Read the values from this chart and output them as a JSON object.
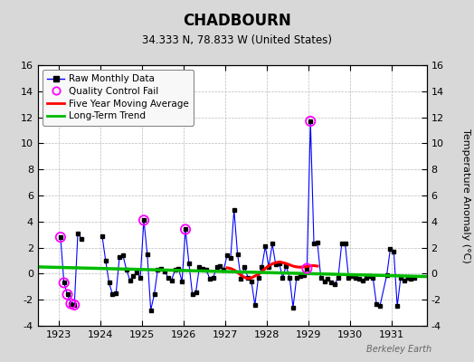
{
  "title": "CHADBOURN",
  "subtitle": "34.333 N, 78.833 W (United States)",
  "ylabel": "Temperature Anomaly (°C)",
  "watermark": "Berkeley Earth",
  "xlim": [
    1922.5,
    1931.83
  ],
  "ylim": [
    -4,
    16
  ],
  "yticks": [
    -4,
    -2,
    0,
    2,
    4,
    6,
    8,
    10,
    12,
    14,
    16
  ],
  "xticks": [
    1923,
    1924,
    1925,
    1926,
    1927,
    1928,
    1929,
    1930,
    1931
  ],
  "bg_color": "#d8d8d8",
  "plot_bg_color": "#ffffff",
  "grid_color": "#bbbbbb",
  "raw_line_color": "#0000ff",
  "raw_marker_color": "#000000",
  "qc_fail_color": "#ff00ff",
  "moving_avg_color": "#ff0000",
  "trend_color": "#00bb00",
  "raw_data": [
    [
      1923.042,
      2.8
    ],
    [
      1923.125,
      -0.7
    ],
    [
      1923.208,
      -1.6
    ],
    [
      1923.292,
      -2.3
    ],
    [
      1923.375,
      -2.4
    ],
    [
      1923.458,
      3.1
    ],
    [
      1923.542,
      2.7
    ],
    [
      1924.042,
      2.9
    ],
    [
      1924.125,
      1.0
    ],
    [
      1924.208,
      -0.7
    ],
    [
      1924.292,
      -1.6
    ],
    [
      1924.375,
      -1.5
    ],
    [
      1924.458,
      1.3
    ],
    [
      1924.542,
      1.4
    ],
    [
      1924.625,
      0.3
    ],
    [
      1924.708,
      -0.5
    ],
    [
      1924.792,
      -0.2
    ],
    [
      1924.875,
      0.1
    ],
    [
      1924.958,
      -0.3
    ],
    [
      1925.042,
      4.1
    ],
    [
      1925.125,
      1.5
    ],
    [
      1925.208,
      -2.8
    ],
    [
      1925.292,
      -1.6
    ],
    [
      1925.375,
      0.3
    ],
    [
      1925.458,
      0.4
    ],
    [
      1925.542,
      0.2
    ],
    [
      1925.625,
      -0.3
    ],
    [
      1925.708,
      -0.5
    ],
    [
      1925.792,
      0.3
    ],
    [
      1925.875,
      0.4
    ],
    [
      1925.958,
      -0.6
    ],
    [
      1926.042,
      3.4
    ],
    [
      1926.125,
      0.8
    ],
    [
      1926.208,
      -1.6
    ],
    [
      1926.292,
      -1.4
    ],
    [
      1926.375,
      0.5
    ],
    [
      1926.458,
      0.4
    ],
    [
      1926.542,
      0.3
    ],
    [
      1926.625,
      -0.4
    ],
    [
      1926.708,
      -0.3
    ],
    [
      1926.792,
      0.5
    ],
    [
      1926.875,
      0.6
    ],
    [
      1926.958,
      0.3
    ],
    [
      1927.042,
      1.4
    ],
    [
      1927.125,
      1.2
    ],
    [
      1927.208,
      4.9
    ],
    [
      1927.292,
      1.5
    ],
    [
      1927.375,
      -0.4
    ],
    [
      1927.458,
      0.5
    ],
    [
      1927.542,
      -0.3
    ],
    [
      1927.625,
      -0.6
    ],
    [
      1927.708,
      -2.4
    ],
    [
      1927.792,
      -0.3
    ],
    [
      1927.875,
      0.5
    ],
    [
      1927.958,
      2.1
    ],
    [
      1928.042,
      0.5
    ],
    [
      1928.125,
      2.3
    ],
    [
      1928.208,
      0.7
    ],
    [
      1928.292,
      0.8
    ],
    [
      1928.375,
      -0.3
    ],
    [
      1928.458,
      0.6
    ],
    [
      1928.542,
      -0.3
    ],
    [
      1928.625,
      -2.6
    ],
    [
      1928.708,
      -0.3
    ],
    [
      1928.792,
      -0.2
    ],
    [
      1928.875,
      -0.1
    ],
    [
      1928.958,
      0.4
    ],
    [
      1929.042,
      11.7
    ],
    [
      1929.125,
      2.3
    ],
    [
      1929.208,
      2.4
    ],
    [
      1929.292,
      -0.3
    ],
    [
      1929.375,
      -0.6
    ],
    [
      1929.458,
      -0.4
    ],
    [
      1929.542,
      -0.7
    ],
    [
      1929.625,
      -0.8
    ],
    [
      1929.708,
      -0.3
    ],
    [
      1929.792,
      2.3
    ],
    [
      1929.875,
      2.3
    ],
    [
      1929.958,
      -0.3
    ],
    [
      1930.042,
      -0.2
    ],
    [
      1930.125,
      -0.3
    ],
    [
      1930.208,
      -0.4
    ],
    [
      1930.292,
      -0.5
    ],
    [
      1930.375,
      -0.3
    ],
    [
      1930.458,
      -0.2
    ],
    [
      1930.542,
      -0.3
    ],
    [
      1930.625,
      -2.3
    ],
    [
      1930.708,
      -2.5
    ],
    [
      1930.875,
      -0.1
    ],
    [
      1930.958,
      1.9
    ],
    [
      1931.042,
      1.7
    ],
    [
      1931.125,
      -2.5
    ],
    [
      1931.208,
      -0.3
    ],
    [
      1931.292,
      -0.5
    ],
    [
      1931.375,
      -0.3
    ],
    [
      1931.458,
      -0.4
    ],
    [
      1931.542,
      -0.3
    ]
  ],
  "qc_fail_points": [
    [
      1923.042,
      2.8
    ],
    [
      1923.125,
      -0.7
    ],
    [
      1923.208,
      -1.6
    ],
    [
      1923.292,
      -2.3
    ],
    [
      1923.375,
      -2.4
    ],
    [
      1925.042,
      4.1
    ],
    [
      1926.042,
      3.4
    ],
    [
      1928.958,
      0.4
    ],
    [
      1929.042,
      11.7
    ]
  ],
  "moving_avg": [
    [
      1927.042,
      0.45
    ],
    [
      1927.125,
      0.4
    ],
    [
      1927.208,
      0.28
    ],
    [
      1927.292,
      0.1
    ],
    [
      1927.375,
      -0.12
    ],
    [
      1927.458,
      -0.28
    ],
    [
      1927.542,
      -0.38
    ],
    [
      1927.625,
      -0.32
    ],
    [
      1927.708,
      -0.18
    ],
    [
      1927.792,
      -0.05
    ],
    [
      1927.875,
      0.15
    ],
    [
      1927.958,
      0.4
    ],
    [
      1928.042,
      0.6
    ],
    [
      1928.125,
      0.75
    ],
    [
      1928.208,
      0.85
    ],
    [
      1928.292,
      0.9
    ],
    [
      1928.375,
      0.85
    ],
    [
      1928.458,
      0.78
    ],
    [
      1928.542,
      0.68
    ],
    [
      1928.625,
      0.58
    ],
    [
      1928.708,
      0.52
    ],
    [
      1928.792,
      0.5
    ],
    [
      1928.875,
      0.52
    ],
    [
      1928.958,
      0.55
    ],
    [
      1929.042,
      0.6
    ],
    [
      1929.125,
      0.62
    ],
    [
      1929.208,
      0.58
    ]
  ],
  "trend_x": [
    1922.5,
    1931.83
  ],
  "trend_y": [
    0.52,
    -0.22
  ]
}
